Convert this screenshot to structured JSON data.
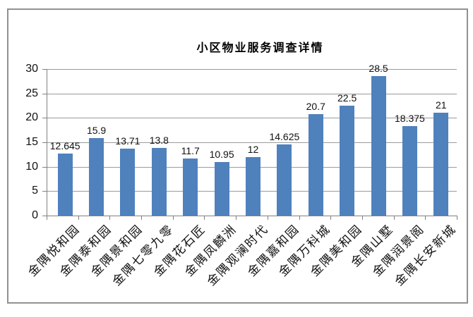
{
  "chart_data": {
    "type": "bar",
    "title": "小区物业服务调查详情",
    "categories": [
      "金隅悦和园",
      "金隅泰和园",
      "金隅景和园",
      "金隅七零九零",
      "金隅花石匠",
      "金隅凤麟洲",
      "金隅观澜时代",
      "金隅嘉和园",
      "金隅万科城",
      "金隅美和园",
      "金隅山墅",
      "金隅润景阁",
      "金隅长安新城"
    ],
    "values": [
      12.645,
      15.9,
      13.71,
      13.8,
      11.7,
      10.95,
      12,
      14.625,
      20.7,
      22.5,
      28.5,
      18.375,
      21
    ],
    "value_labels": [
      "12.645",
      "15.9",
      "13.71",
      "13.8",
      "11.7",
      "10.95",
      "12",
      "14.625",
      "20.7",
      "22.5",
      "28.5",
      "18.375",
      "21"
    ],
    "xlabel": "",
    "ylabel": "",
    "ylim": [
      0,
      30
    ],
    "yticks": [
      0,
      5,
      10,
      15,
      20,
      25,
      30
    ],
    "grid": true,
    "legend": false,
    "bar_color": "#4F81BD",
    "gridline_color": "#9a9a9a",
    "axis_color": "#808080",
    "text_color": "#111111",
    "frame_border_color": "#919191",
    "background_color": "#ffffff"
  }
}
